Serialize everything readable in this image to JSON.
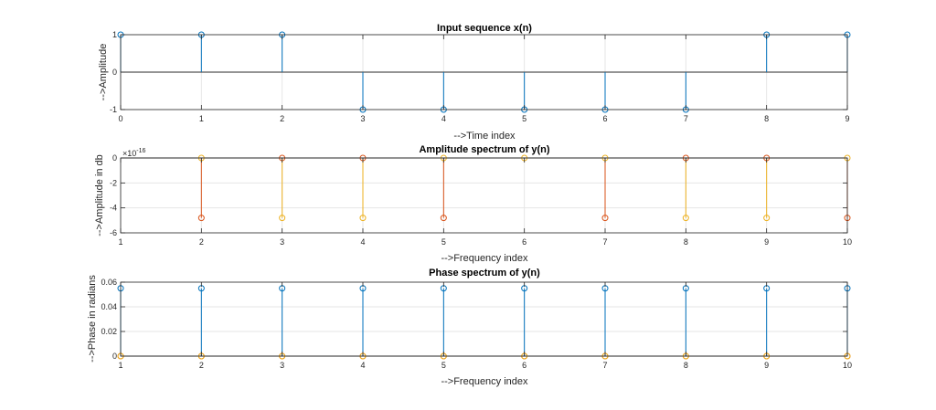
{
  "chart_data": [
    {
      "type": "stem",
      "title": "Input sequence x(n)",
      "xlabel": "-->Time index",
      "ylabel": "-->Amplitude",
      "xlim": [
        0,
        9
      ],
      "ylim": [
        -1,
        1
      ],
      "xticks": [
        0,
        1,
        2,
        3,
        4,
        5,
        6,
        7,
        8,
        9
      ],
      "yticks": [
        -1,
        0,
        1
      ],
      "grid": true,
      "series": [
        {
          "color": "#0072BD",
          "x": [
            0,
            1,
            2,
            3,
            4,
            5,
            6,
            7,
            8,
            9
          ],
          "y": [
            1,
            1,
            1,
            -1,
            -1,
            -1,
            -1,
            -1,
            1,
            1
          ]
        }
      ]
    },
    {
      "type": "stem",
      "title": "Amplitude spectrum of y(n)",
      "xlabel": "-->Frequency index",
      "ylabel": "-->Amplitude in db",
      "xlim": [
        1,
        10
      ],
      "ylim": [
        -6,
        0
      ],
      "xticks": [
        1,
        2,
        3,
        4,
        5,
        6,
        7,
        8,
        9,
        10
      ],
      "yticks": [
        -6,
        -4,
        -2,
        0
      ],
      "exponent_base": "×10",
      "exponent_power": "-16",
      "grid": true,
      "series": [
        {
          "color": "#D95319",
          "x": [
            2,
            3,
            4,
            5,
            7,
            8,
            9,
            10
          ],
          "y": [
            -4.8,
            0,
            0,
            -4.8,
            -4.8,
            0,
            0,
            -4.8
          ]
        },
        {
          "color": "#EDB120",
          "x": [
            2,
            3,
            4,
            5,
            6,
            7,
            8,
            9,
            10
          ],
          "y": [
            0,
            -4.8,
            -4.8,
            0,
            0,
            0,
            -4.8,
            -4.8,
            0
          ]
        }
      ]
    },
    {
      "type": "stem",
      "title": "Phase spectrum of y(n)",
      "xlabel": "-->Frequency index",
      "ylabel": "-->Phase in radians",
      "xlim": [
        1,
        10
      ],
      "ylim": [
        0,
        0.06
      ],
      "xticks": [
        1,
        2,
        3,
        4,
        5,
        6,
        7,
        8,
        9,
        10
      ],
      "yticks": [
        0,
        0.02,
        0.04,
        0.06
      ],
      "grid": true,
      "series": [
        {
          "color": "#0072BD",
          "x": [
            1,
            2,
            3,
            4,
            5,
            6,
            7,
            8,
            9,
            10
          ],
          "y": [
            0.055,
            0.055,
            0.055,
            0.055,
            0.055,
            0.055,
            0.055,
            0.055,
            0.055,
            0.055
          ]
        },
        {
          "color": "#D95319",
          "x": [
            1,
            2,
            3,
            4,
            5,
            6,
            7,
            8,
            9,
            10
          ],
          "y": [
            0,
            0,
            0,
            0,
            0,
            0,
            0,
            0,
            0,
            0
          ]
        },
        {
          "color": "#EDB120",
          "x": [
            1,
            2,
            3,
            4,
            5,
            6,
            7,
            8,
            9,
            10
          ],
          "y": [
            0,
            0,
            0,
            0,
            0,
            0,
            0,
            0,
            0,
            0
          ]
        }
      ]
    }
  ]
}
